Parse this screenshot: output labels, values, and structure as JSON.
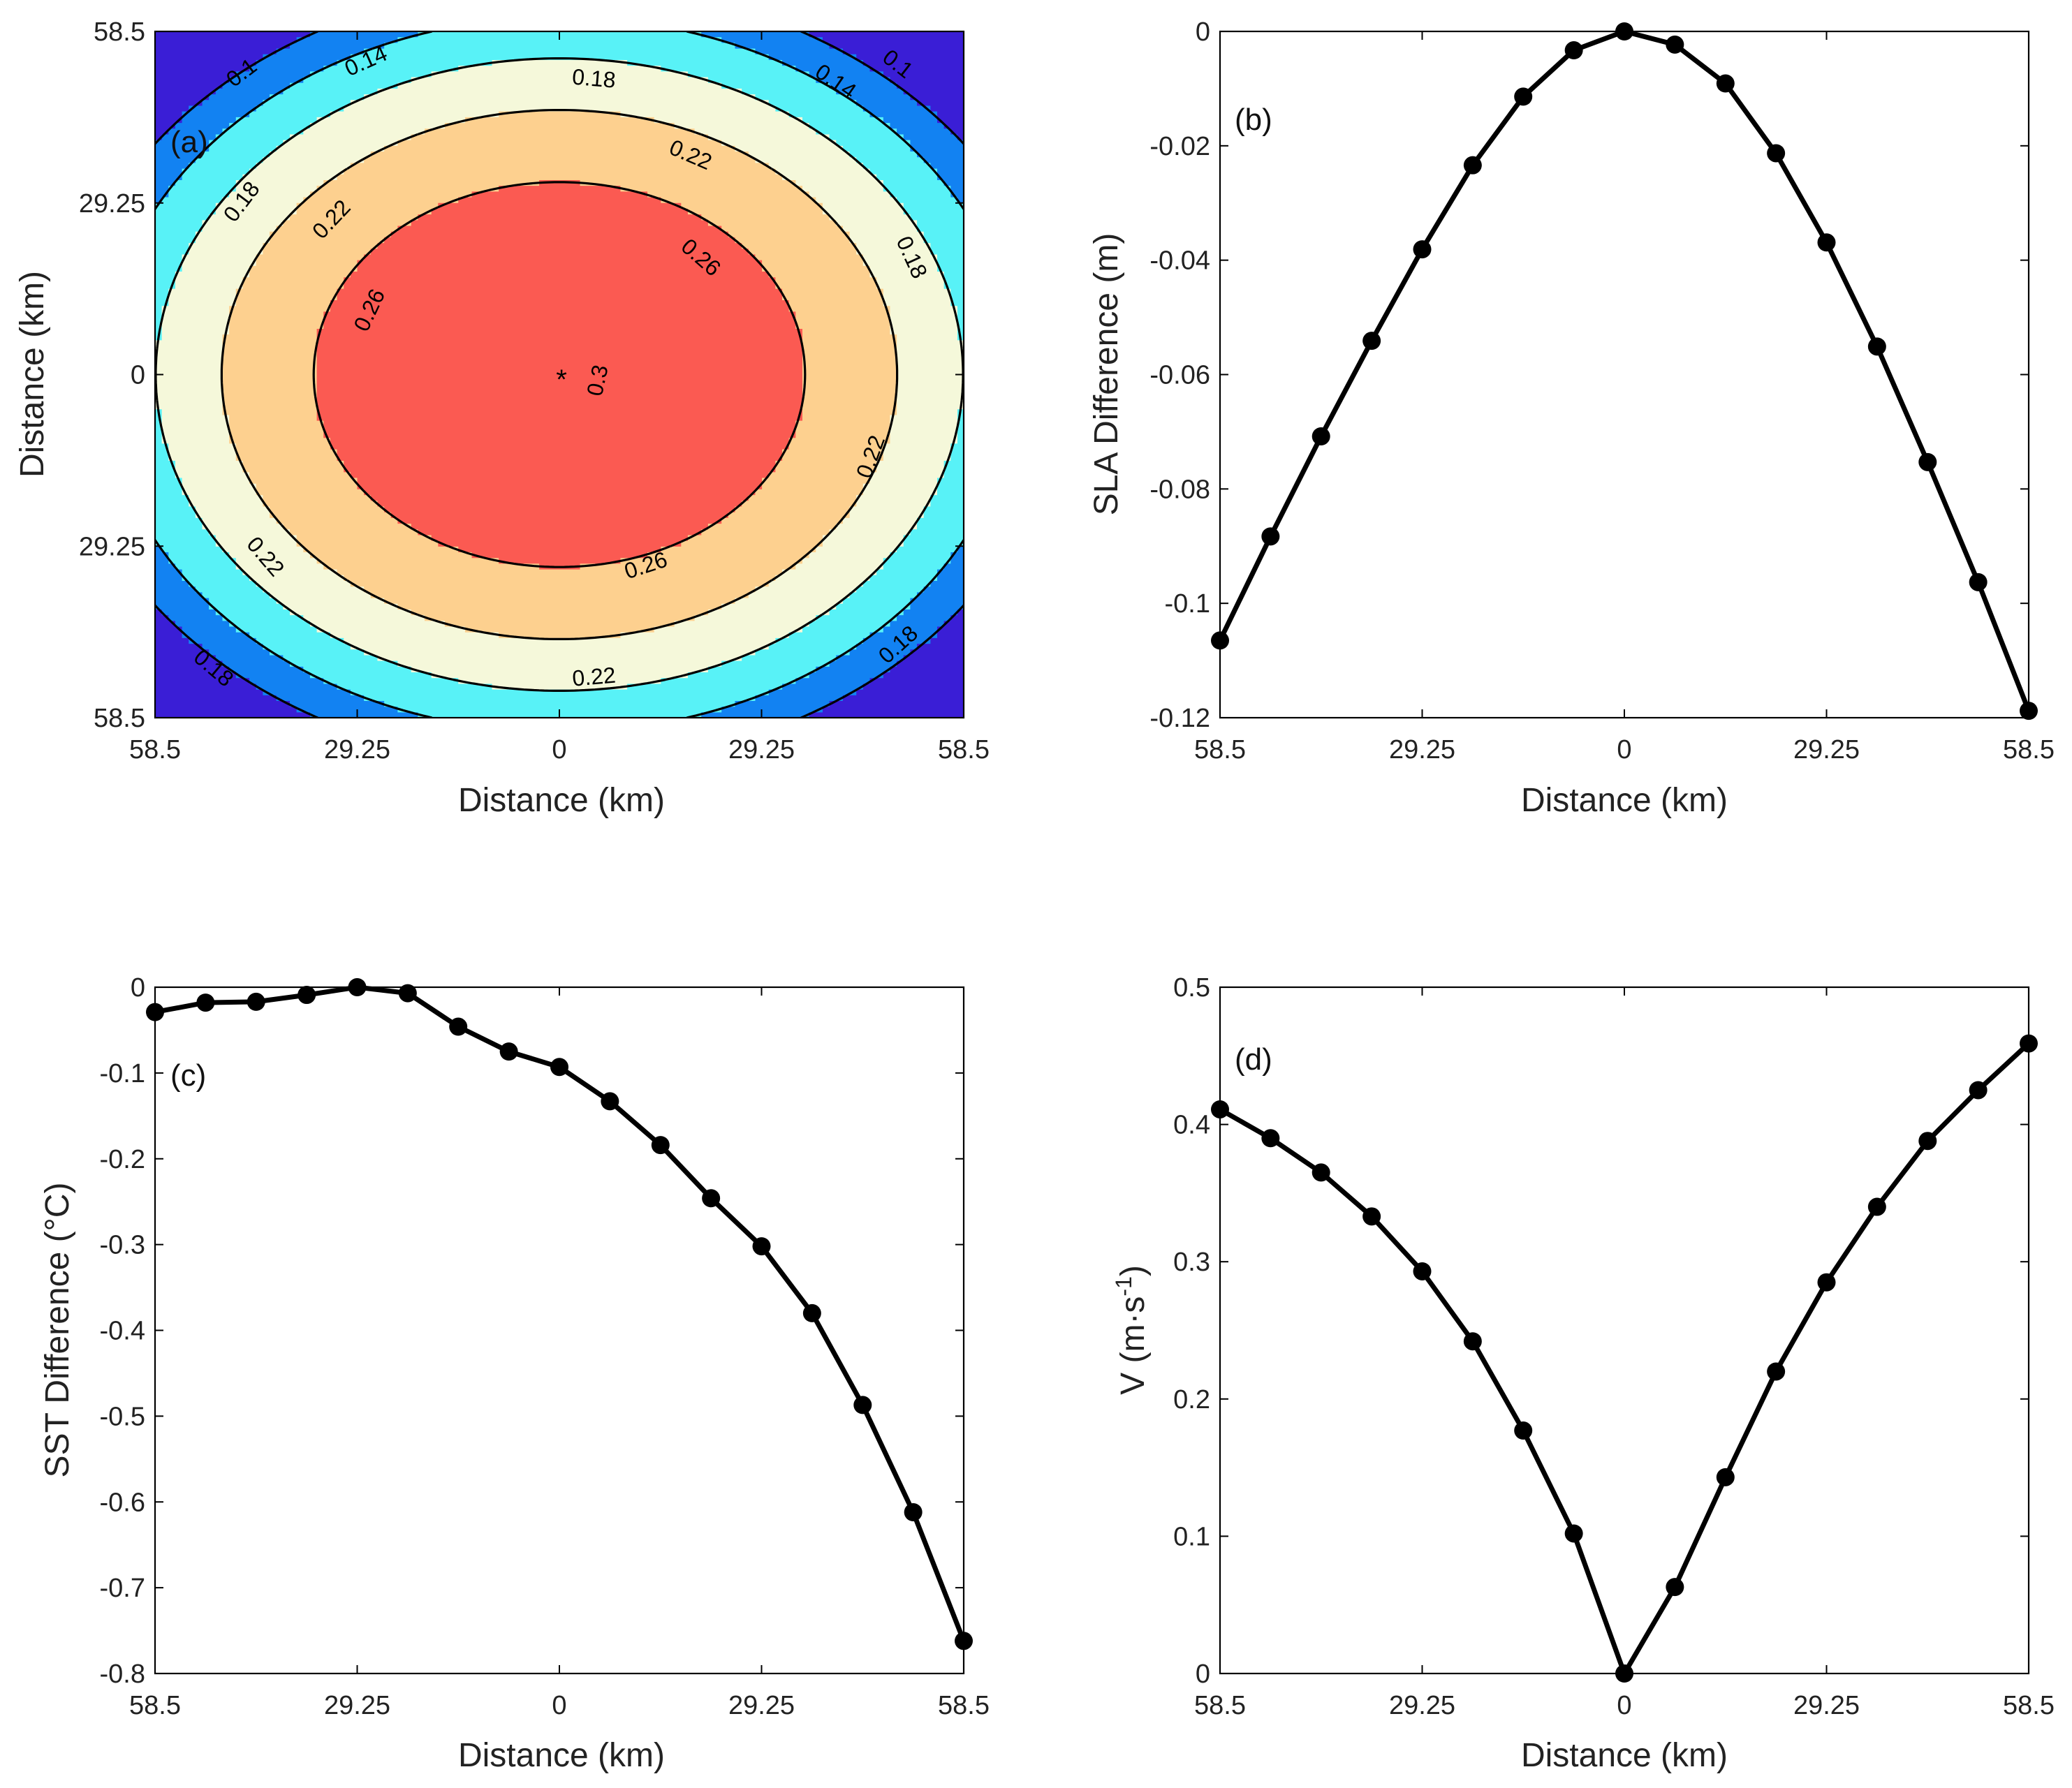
{
  "chart_data": [
    {
      "panel": "a",
      "type": "contour",
      "panel_label": "(a)",
      "xlabel": "Distance (km)",
      "ylabel": "Distance (km)",
      "xticks": [
        "58.5",
        "29.25",
        "0",
        "29.25",
        "58.5"
      ],
      "yticks": [
        "58.5",
        "29.25",
        "0",
        "29.25",
        "58.5"
      ],
      "xlim": [
        -58.5,
        58.5
      ],
      "ylim": [
        -58.5,
        58.5
      ],
      "levels": [
        0.1,
        0.14,
        0.18,
        0.22,
        0.26,
        0.3
      ],
      "colors": [
        "#3a1ed6",
        "#1282f2",
        "#58f2f7",
        "#f5f8da",
        "#fdd08f",
        "#fb5a52",
        "#c7111d"
      ],
      "contour_labels": [
        {
          "text": "0.1",
          "x": -46,
          "y": 51.5
        },
        {
          "text": "0.14",
          "x": -28,
          "y": 53.5
        },
        {
          "text": "0.18",
          "x": 5,
          "y": 50.5
        },
        {
          "text": "0.14",
          "x": 40,
          "y": 50
        },
        {
          "text": "0.1",
          "x": 49,
          "y": 53
        },
        {
          "text": "0.22",
          "x": 19,
          "y": 37.5
        },
        {
          "text": "0.18",
          "x": -46,
          "y": 29.5
        },
        {
          "text": "0.22",
          "x": -33,
          "y": 26.5
        },
        {
          "text": "0.26",
          "x": 20.5,
          "y": 20
        },
        {
          "text": "0.18",
          "x": 51,
          "y": 20
        },
        {
          "text": "0.26",
          "x": -27.5,
          "y": 11
        },
        {
          "text": "0.3",
          "x": 5.5,
          "y": -1
        },
        {
          "text": "0.22",
          "x": 45,
          "y": -14
        },
        {
          "text": "0.22",
          "x": -42.5,
          "y": -31
        },
        {
          "text": "0.26",
          "x": 12.5,
          "y": -32.5
        },
        {
          "text": "0.18",
          "x": -50,
          "y": -50
        },
        {
          "text": "0.22",
          "x": 5,
          "y": -51.5
        },
        {
          "text": "0.18",
          "x": 49,
          "y": -46
        }
      ],
      "center_marker": "*"
    },
    {
      "panel": "b",
      "type": "line",
      "panel_label": "(b)",
      "xlabel": "Distance (km)",
      "ylabel": "SLA Difference (m)",
      "xticks": [
        "58.5",
        "29.25",
        "0",
        "29.25",
        "58.5"
      ],
      "yticks": [
        "0",
        "-0.02",
        "-0.04",
        "-0.06",
        "-0.08",
        "-0.1",
        "-0.12"
      ],
      "xlim": [
        -58.5,
        58.5
      ],
      "ylim": [
        -0.12,
        0
      ],
      "x": [
        -58.5,
        -51.19,
        -43.88,
        -36.56,
        -29.25,
        -21.94,
        -14.63,
        -7.31,
        0,
        7.31,
        14.63,
        21.94,
        29.25,
        36.56,
        43.88,
        51.19,
        58.5
      ],
      "y": [
        -0.1065,
        -0.0883,
        -0.0708,
        -0.0541,
        -0.0381,
        -0.0234,
        -0.0114,
        -0.0033,
        0,
        -0.0023,
        -0.0091,
        -0.0213,
        -0.0369,
        -0.0551,
        -0.0753,
        -0.0963,
        -0.1188
      ]
    },
    {
      "panel": "c",
      "type": "line",
      "panel_label": "(c)",
      "xlabel": "Distance (km)",
      "ylabel": "SST Difference (°C)",
      "xticks": [
        "58.5",
        "29.25",
        "0",
        "29.25",
        "58.5"
      ],
      "yticks": [
        "0",
        "-0.1",
        "-0.2",
        "-0.3",
        "-0.4",
        "-0.5",
        "-0.6",
        "-0.7",
        "-0.8"
      ],
      "xlim": [
        -58.5,
        58.5
      ],
      "ylim": [
        -0.8,
        0
      ],
      "x": [
        -58.5,
        -51.19,
        -43.88,
        -36.56,
        -29.25,
        -21.94,
        -14.63,
        -7.31,
        0,
        7.31,
        14.63,
        21.94,
        29.25,
        36.56,
        43.88,
        51.19,
        58.5
      ],
      "y": [
        -0.029,
        -0.018,
        -0.017,
        -0.009,
        0,
        -0.007,
        -0.046,
        -0.075,
        -0.093,
        -0.133,
        -0.184,
        -0.246,
        -0.302,
        -0.38,
        -0.487,
        -0.612,
        -0.762
      ]
    },
    {
      "panel": "d",
      "type": "line",
      "panel_label": "(d)",
      "xlabel": "Distance (km)",
      "ylabel": "V (m·s",
      "ylabel_sup": "-1",
      "ylabel_end": ")",
      "xticks": [
        "58.5",
        "29.25",
        "0",
        "29.25",
        "58.5"
      ],
      "yticks": [
        "0.5",
        "0.4",
        "0.3",
        "0.2",
        "0.1",
        "0"
      ],
      "xlim": [
        -58.5,
        58.5
      ],
      "ylim": [
        0,
        0.5
      ],
      "x": [
        -58.5,
        -51.19,
        -43.88,
        -36.56,
        -29.25,
        -21.94,
        -14.63,
        -7.31,
        0,
        7.31,
        14.63,
        21.94,
        29.25,
        36.56,
        43.88,
        51.19,
        58.5
      ],
      "y": [
        0.411,
        0.39,
        0.365,
        0.333,
        0.293,
        0.242,
        0.177,
        0.102,
        0,
        0.063,
        0.143,
        0.22,
        0.285,
        0.34,
        0.388,
        0.425,
        0.459
      ]
    }
  ]
}
